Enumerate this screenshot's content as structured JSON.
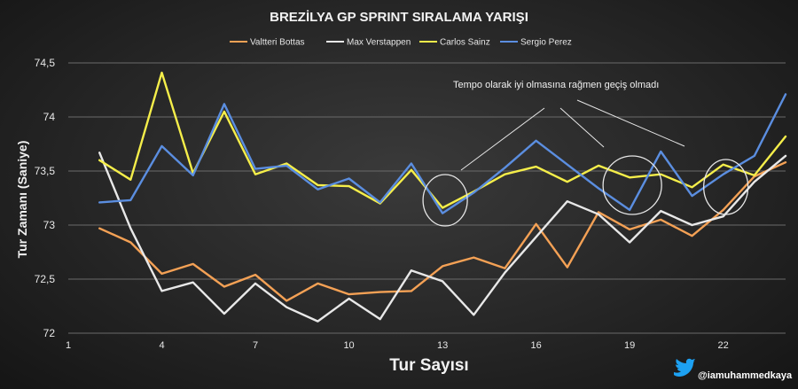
{
  "chart_data": {
    "type": "line",
    "title": "BREZİLYA GP SPRINT SIRALAMA YARIŞI",
    "xlabel": "Tur Sayısı",
    "ylabel": "Tur Zamanı (Saniye)",
    "xlim": [
      1,
      24
    ],
    "ylim": [
      72,
      74.5
    ],
    "x_ticks": [
      1,
      4,
      7,
      10,
      13,
      16,
      19,
      22
    ],
    "y_ticks": [
      {
        "v": 72,
        "label": "72"
      },
      {
        "v": 72.5,
        "label": "72,5"
      },
      {
        "v": 73,
        "label": "73"
      },
      {
        "v": 73.5,
        "label": "73,5"
      },
      {
        "v": 74,
        "label": "74"
      },
      {
        "v": 74.5,
        "label": "74,5"
      }
    ],
    "grid": "horizontal",
    "legend_position": "top",
    "x": [
      2,
      3,
      4,
      5,
      6,
      7,
      8,
      9,
      10,
      11,
      12,
      13,
      14,
      15,
      16,
      17,
      18,
      19,
      20,
      21,
      22,
      23,
      24
    ],
    "series": [
      {
        "name": "Valtteri Bottas",
        "color": "#f4a155",
        "values": [
          72.97,
          72.84,
          72.55,
          72.64,
          72.43,
          72.54,
          72.3,
          72.46,
          72.36,
          72.38,
          72.39,
          72.62,
          72.7,
          72.6,
          73.01,
          72.61,
          73.12,
          72.96,
          73.05,
          72.9,
          73.14,
          73.45,
          73.58
        ]
      },
      {
        "name": "Max Verstappen",
        "color": "#e8e8e8",
        "values": [
          73.67,
          72.97,
          72.39,
          72.47,
          72.18,
          72.46,
          72.24,
          72.11,
          72.32,
          72.13,
          72.58,
          72.48,
          72.17,
          72.56,
          72.89,
          73.22,
          73.1,
          72.84,
          73.13,
          73.0,
          73.08,
          73.4,
          73.64
        ]
      },
      {
        "name": "Carlos Sainz",
        "color": "#f5ee4a",
        "values": [
          73.6,
          73.42,
          74.41,
          73.48,
          74.05,
          73.47,
          73.57,
          73.37,
          73.36,
          73.2,
          73.51,
          73.16,
          73.31,
          73.47,
          73.54,
          73.4,
          73.55,
          73.44,
          73.47,
          73.35,
          73.56,
          73.46,
          73.82
        ]
      },
      {
        "name": "Sergio Perez",
        "color": "#5b8ee0",
        "values": [
          73.21,
          73.23,
          73.73,
          73.46,
          74.12,
          73.52,
          73.55,
          73.33,
          73.43,
          73.21,
          73.57,
          73.11,
          73.3,
          73.53,
          73.78,
          73.56,
          73.34,
          73.14,
          73.68,
          73.27,
          73.47,
          73.64,
          74.21
        ]
      }
    ],
    "annotation": "Tempo olarak iyi olmasına rağmen geçiş olmadı",
    "highlight_laps": [
      13,
      19,
      22
    ]
  },
  "footer": {
    "handle": "@iamuhammedkaya",
    "icon": "twitter-bird-icon"
  }
}
